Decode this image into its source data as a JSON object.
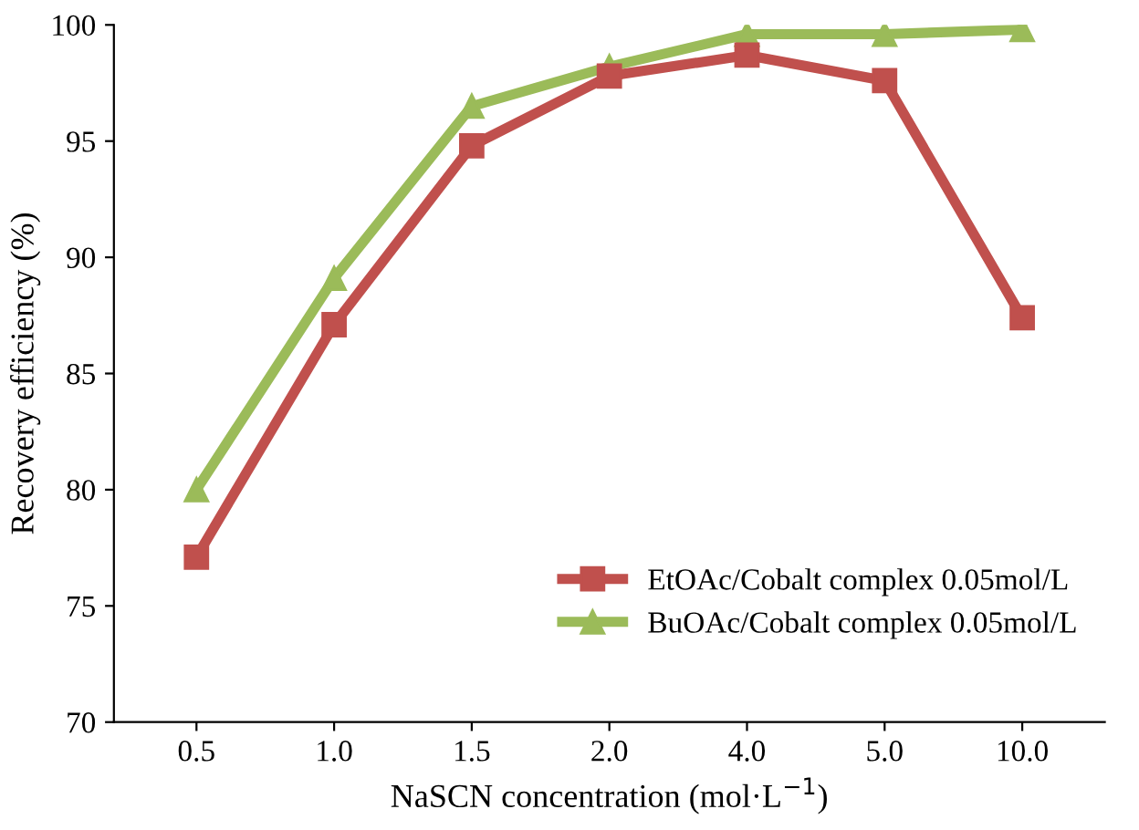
{
  "chart_data": {
    "type": "line",
    "xlabel": "NaSCN concentration (mol·L$^{−1}$)",
    "ylabel": "Recovery efficiency (%)",
    "categories": [
      "0.5",
      "1.0",
      "1.5",
      "2.0",
      "4.0",
      "5.0",
      "10.0"
    ],
    "series": [
      {
        "name": "EtOAc/Cobalt complex 0.05mol/L",
        "color": "#c0504d",
        "marker": "square",
        "values": [
          77.1,
          87.1,
          94.8,
          97.8,
          98.7,
          97.6,
          87.4
        ]
      },
      {
        "name": "BuOAc/Cobalt complex 0.05mol/L",
        "color": "#9bbb59",
        "marker": "triangle",
        "values": [
          80.0,
          89.1,
          96.5,
          98.2,
          99.6,
          99.6,
          99.8
        ]
      }
    ],
    "ylim": [
      70,
      100
    ],
    "yticks": [
      70,
      75,
      80,
      85,
      90,
      95,
      100
    ],
    "grid": false,
    "legend": "bottom right",
    "line_style": "solid"
  }
}
